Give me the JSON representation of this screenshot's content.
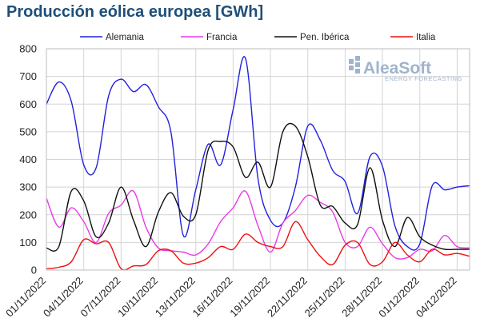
{
  "chart_data": {
    "type": "line",
    "title": "Producción eólica europea [GWh]",
    "xlabel": "",
    "ylabel": "",
    "ylim": [
      0,
      800
    ],
    "yticks": [
      0,
      100,
      200,
      300,
      400,
      500,
      600,
      700,
      800
    ],
    "xlim": [
      1,
      35
    ],
    "xticks": [
      1,
      4,
      7,
      10,
      13,
      16,
      19,
      22,
      25,
      28,
      31,
      34
    ],
    "x_tick_labels": [
      "01/11/2022",
      "04/11/2022",
      "07/11/2022",
      "10/11/2022",
      "13/11/2022",
      "16/11/2022",
      "19/11/2022",
      "22/11/2022",
      "25/11/2022",
      "28/11/2022",
      "01/12/2022",
      "04/12/2022"
    ],
    "grid": true,
    "legend_position": "top",
    "series": [
      {
        "name": "Alemania",
        "color": "#2222dd",
        "x": [
          1,
          2,
          3,
          4,
          5,
          6,
          7,
          8,
          9,
          10,
          11,
          12,
          13,
          14,
          15,
          16,
          17,
          18,
          19,
          20,
          21,
          22,
          23,
          24,
          25,
          26,
          27,
          28,
          29,
          30,
          31,
          32,
          33,
          34,
          35
        ],
        "values": [
          600,
          680,
          610,
          380,
          370,
          630,
          690,
          645,
          670,
          590,
          500,
          125,
          290,
          455,
          380,
          580,
          765,
          330,
          180,
          170,
          300,
          520,
          470,
          360,
          320,
          205,
          410,
          375,
          160,
          85,
          95,
          305,
          290,
          300,
          305
        ]
      },
      {
        "name": "Francia",
        "color": "#e83ae8",
        "x": [
          1,
          2,
          3,
          4,
          5,
          6,
          7,
          8,
          9,
          10,
          11,
          12,
          13,
          14,
          15,
          16,
          17,
          18,
          19,
          20,
          21,
          22,
          23,
          24,
          25,
          26,
          27,
          28,
          29,
          30,
          31,
          32,
          33,
          34,
          35
        ],
        "values": [
          260,
          155,
          225,
          175,
          100,
          205,
          235,
          285,
          155,
          80,
          70,
          65,
          55,
          95,
          175,
          225,
          285,
          160,
          65,
          170,
          215,
          270,
          245,
          210,
          100,
          85,
          155,
          95,
          45,
          45,
          75,
          70,
          125,
          85,
          80
        ]
      },
      {
        "name": "Pen. Ibérica",
        "color": "#111111",
        "x": [
          1,
          2,
          3,
          4,
          5,
          6,
          7,
          8,
          9,
          10,
          11,
          12,
          13,
          14,
          15,
          16,
          17,
          18,
          19,
          20,
          21,
          22,
          23,
          24,
          25,
          26,
          27,
          28,
          29,
          30,
          31,
          32,
          33,
          34,
          35
        ],
        "values": [
          80,
          85,
          285,
          250,
          120,
          170,
          300,
          180,
          85,
          210,
          280,
          195,
          200,
          435,
          465,
          445,
          335,
          390,
          300,
          500,
          520,
          410,
          235,
          230,
          170,
          165,
          370,
          180,
          85,
          190,
          120,
          90,
          75,
          75,
          75
        ]
      },
      {
        "name": "Italia",
        "color": "#ee1111",
        "x": [
          1,
          2,
          3,
          4,
          5,
          6,
          7,
          8,
          9,
          10,
          11,
          12,
          13,
          14,
          15,
          16,
          17,
          18,
          19,
          20,
          21,
          22,
          23,
          24,
          25,
          26,
          27,
          28,
          29,
          30,
          31,
          32,
          33,
          34,
          35
        ],
        "values": [
          5,
          10,
          30,
          110,
          95,
          100,
          5,
          15,
          20,
          70,
          70,
          25,
          25,
          45,
          85,
          75,
          130,
          100,
          85,
          85,
          175,
          110,
          50,
          20,
          90,
          100,
          20,
          30,
          100,
          55,
          30,
          75,
          55,
          60,
          50
        ]
      }
    ]
  },
  "watermark": {
    "brand": "AleaSoft",
    "tagline": "ENERGY FORECASTING"
  }
}
